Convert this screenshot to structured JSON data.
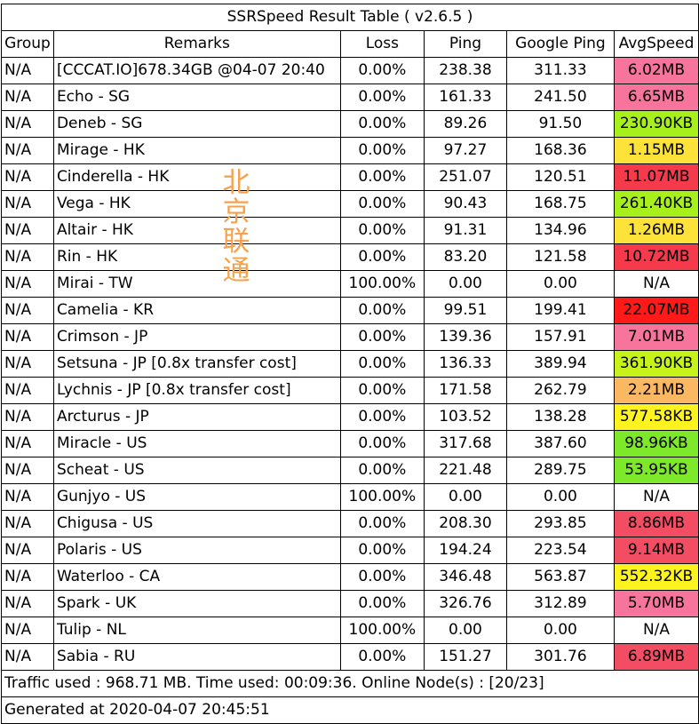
{
  "title": "SSRSpeed Result Table ( v2.6.5 )",
  "columns": [
    "Group",
    "Remarks",
    "Loss",
    "Ping",
    "Google Ping",
    "AvgSpeed"
  ],
  "rows": [
    {
      "group": "N/A",
      "remarks": "[CCCAT.IO]678.34GB @04-07 20:40",
      "loss": "0.00%",
      "ping": "238.38",
      "gping": "311.33",
      "speed": "6.02MB",
      "speed_color": "#f7749c"
    },
    {
      "group": "N/A",
      "remarks": "Echo - SG",
      "loss": "0.00%",
      "ping": "161.33",
      "gping": "241.50",
      "speed": "6.65MB",
      "speed_color": "#f7749c"
    },
    {
      "group": "N/A",
      "remarks": "Deneb - SG",
      "loss": "0.00%",
      "ping": "89.26",
      "gping": "91.50",
      "speed": "230.90KB",
      "speed_color": "#a8f01c"
    },
    {
      "group": "N/A",
      "remarks": "Mirage - HK",
      "loss": "0.00%",
      "ping": "97.27",
      "gping": "168.36",
      "speed": "1.15MB",
      "speed_color": "#fde23a"
    },
    {
      "group": "N/A",
      "remarks": "Cinderella - HK",
      "loss": "0.00%",
      "ping": "251.07",
      "gping": "120.51",
      "speed": "11.07MB",
      "speed_color": "#f53a4c"
    },
    {
      "group": "N/A",
      "remarks": "Vega - HK",
      "loss": "0.00%",
      "ping": "90.43",
      "gping": "168.75",
      "speed": "261.40KB",
      "speed_color": "#a8f01c"
    },
    {
      "group": "N/A",
      "remarks": "Altair - HK",
      "loss": "0.00%",
      "ping": "91.31",
      "gping": "134.96",
      "speed": "1.26MB",
      "speed_color": "#fde23a"
    },
    {
      "group": "N/A",
      "remarks": "Rin - HK",
      "loss": "0.00%",
      "ping": "83.20",
      "gping": "121.58",
      "speed": "10.72MB",
      "speed_color": "#f53a4c"
    },
    {
      "group": "N/A",
      "remarks": "Mirai - TW",
      "loss": "100.00%",
      "ping": "0.00",
      "gping": "0.00",
      "speed": "N/A",
      "speed_color": "#ffffff"
    },
    {
      "group": "N/A",
      "remarks": "Camelia - KR",
      "loss": "0.00%",
      "ping": "99.51",
      "gping": "199.41",
      "speed": "22.07MB",
      "speed_color": "#ff1a1a"
    },
    {
      "group": "N/A",
      "remarks": "Crimson - JP",
      "loss": "0.00%",
      "ping": "139.36",
      "gping": "157.91",
      "speed": "7.01MB",
      "speed_color": "#f7749c"
    },
    {
      "group": "N/A",
      "remarks": "Setsuna - JP [0.8x transfer cost]",
      "loss": "0.00%",
      "ping": "136.33",
      "gping": "389.94",
      "speed": "361.90KB",
      "speed_color": "#c7f21a"
    },
    {
      "group": "N/A",
      "remarks": "Lychnis - JP [0.8x transfer cost]",
      "loss": "0.00%",
      "ping": "171.58",
      "gping": "262.79",
      "speed": "2.21MB",
      "speed_color": "#fbb862"
    },
    {
      "group": "N/A",
      "remarks": "Arcturus - JP",
      "loss": "0.00%",
      "ping": "103.52",
      "gping": "138.28",
      "speed": "577.58KB",
      "speed_color": "#fdf31e"
    },
    {
      "group": "N/A",
      "remarks": "Miracle - US",
      "loss": "0.00%",
      "ping": "317.68",
      "gping": "387.60",
      "speed": "98.96KB",
      "speed_color": "#7ee82a"
    },
    {
      "group": "N/A",
      "remarks": "Scheat - US",
      "loss": "0.00%",
      "ping": "221.48",
      "gping": "289.75",
      "speed": "53.95KB",
      "speed_color": "#7ee82a"
    },
    {
      "group": "N/A",
      "remarks": "Gunjyo - US",
      "loss": "100.00%",
      "ping": "0.00",
      "gping": "0.00",
      "speed": "N/A",
      "speed_color": "#ffffff"
    },
    {
      "group": "N/A",
      "remarks": "Chigusa - US",
      "loss": "0.00%",
      "ping": "208.30",
      "gping": "293.85",
      "speed": "8.86MB",
      "speed_color": "#f24d63"
    },
    {
      "group": "N/A",
      "remarks": "Polaris - US",
      "loss": "0.00%",
      "ping": "194.24",
      "gping": "223.54",
      "speed": "9.14MB",
      "speed_color": "#f24d63"
    },
    {
      "group": "N/A",
      "remarks": "Waterloo - CA",
      "loss": "0.00%",
      "ping": "346.48",
      "gping": "563.87",
      "speed": "552.32KB",
      "speed_color": "#fdf31e"
    },
    {
      "group": "N/A",
      "remarks": "Spark - UK",
      "loss": "0.00%",
      "ping": "326.76",
      "gping": "312.89",
      "speed": "5.70MB",
      "speed_color": "#f7749c"
    },
    {
      "group": "N/A",
      "remarks": "Tulip - NL",
      "loss": "100.00%",
      "ping": "0.00",
      "gping": "0.00",
      "speed": "N/A",
      "speed_color": "#ffffff"
    },
    {
      "group": "N/A",
      "remarks": "Sabia - RU",
      "loss": "0.00%",
      "ping": "151.27",
      "gping": "301.76",
      "speed": "6.89MB",
      "speed_color": "#f24d63"
    }
  ],
  "footer": {
    "summary": "Traffic used : 968.71 MB. Time used: 00:09:36. Online Node(s) : [20/23]",
    "generated": "Generated at 2020-04-07 20:45:51"
  },
  "watermark": {
    "chars": [
      "北",
      "京",
      "联",
      "通"
    ],
    "color": "#f5a24f"
  }
}
